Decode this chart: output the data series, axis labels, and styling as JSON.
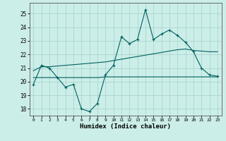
{
  "xlabel": "Humidex (Indice chaleur)",
  "background_color": "#cceee8",
  "grid_color": "#aad4ce",
  "line_color": "#006060",
  "x_labels": [
    "0",
    "1",
    "2",
    "3",
    "4",
    "5",
    "6",
    "7",
    "8",
    "9",
    "10",
    "11",
    "12",
    "13",
    "14",
    "15",
    "16",
    "17",
    "18",
    "19",
    "20",
    "21",
    "22",
    "23"
  ],
  "series1_x": [
    0,
    1,
    2,
    3,
    4,
    5,
    6,
    7,
    8,
    9,
    10,
    11,
    12,
    13,
    14,
    15,
    16,
    17,
    18,
    19,
    20,
    21,
    22,
    23
  ],
  "series1_y": [
    19.8,
    21.2,
    21.0,
    20.3,
    19.6,
    19.8,
    18.0,
    17.8,
    18.4,
    20.5,
    21.2,
    23.3,
    22.8,
    23.1,
    25.3,
    23.1,
    23.5,
    23.8,
    23.4,
    22.9,
    22.2,
    21.0,
    20.5,
    20.4
  ],
  "series2_x": [
    0,
    1,
    2,
    3,
    4,
    5,
    6,
    7,
    8,
    9,
    10,
    11,
    12,
    13,
    14,
    15,
    16,
    17,
    18,
    19,
    20,
    21,
    22,
    23
  ],
  "series2_y": [
    20.8,
    21.1,
    21.1,
    21.15,
    21.2,
    21.25,
    21.3,
    21.35,
    21.4,
    21.45,
    21.55,
    21.65,
    21.75,
    21.85,
    21.95,
    22.05,
    22.15,
    22.25,
    22.35,
    22.4,
    22.3,
    22.25,
    22.2,
    22.2
  ],
  "series3_x": [
    0,
    1,
    2,
    3,
    4,
    5,
    6,
    7,
    8,
    9,
    10,
    11,
    12,
    13,
    14,
    15,
    16,
    17,
    18,
    19,
    20,
    21,
    22,
    23
  ],
  "series3_y": [
    20.3,
    20.3,
    20.3,
    20.3,
    20.3,
    20.3,
    20.3,
    20.3,
    20.3,
    20.35,
    20.35,
    20.35,
    20.35,
    20.35,
    20.35,
    20.35,
    20.35,
    20.35,
    20.35,
    20.35,
    20.35,
    20.35,
    20.35,
    20.35
  ],
  "ylim": [
    17.5,
    25.8
  ],
  "yticks": [
    18,
    19,
    20,
    21,
    22,
    23,
    24,
    25
  ],
  "figsize": [
    3.2,
    2.0
  ],
  "dpi": 100
}
